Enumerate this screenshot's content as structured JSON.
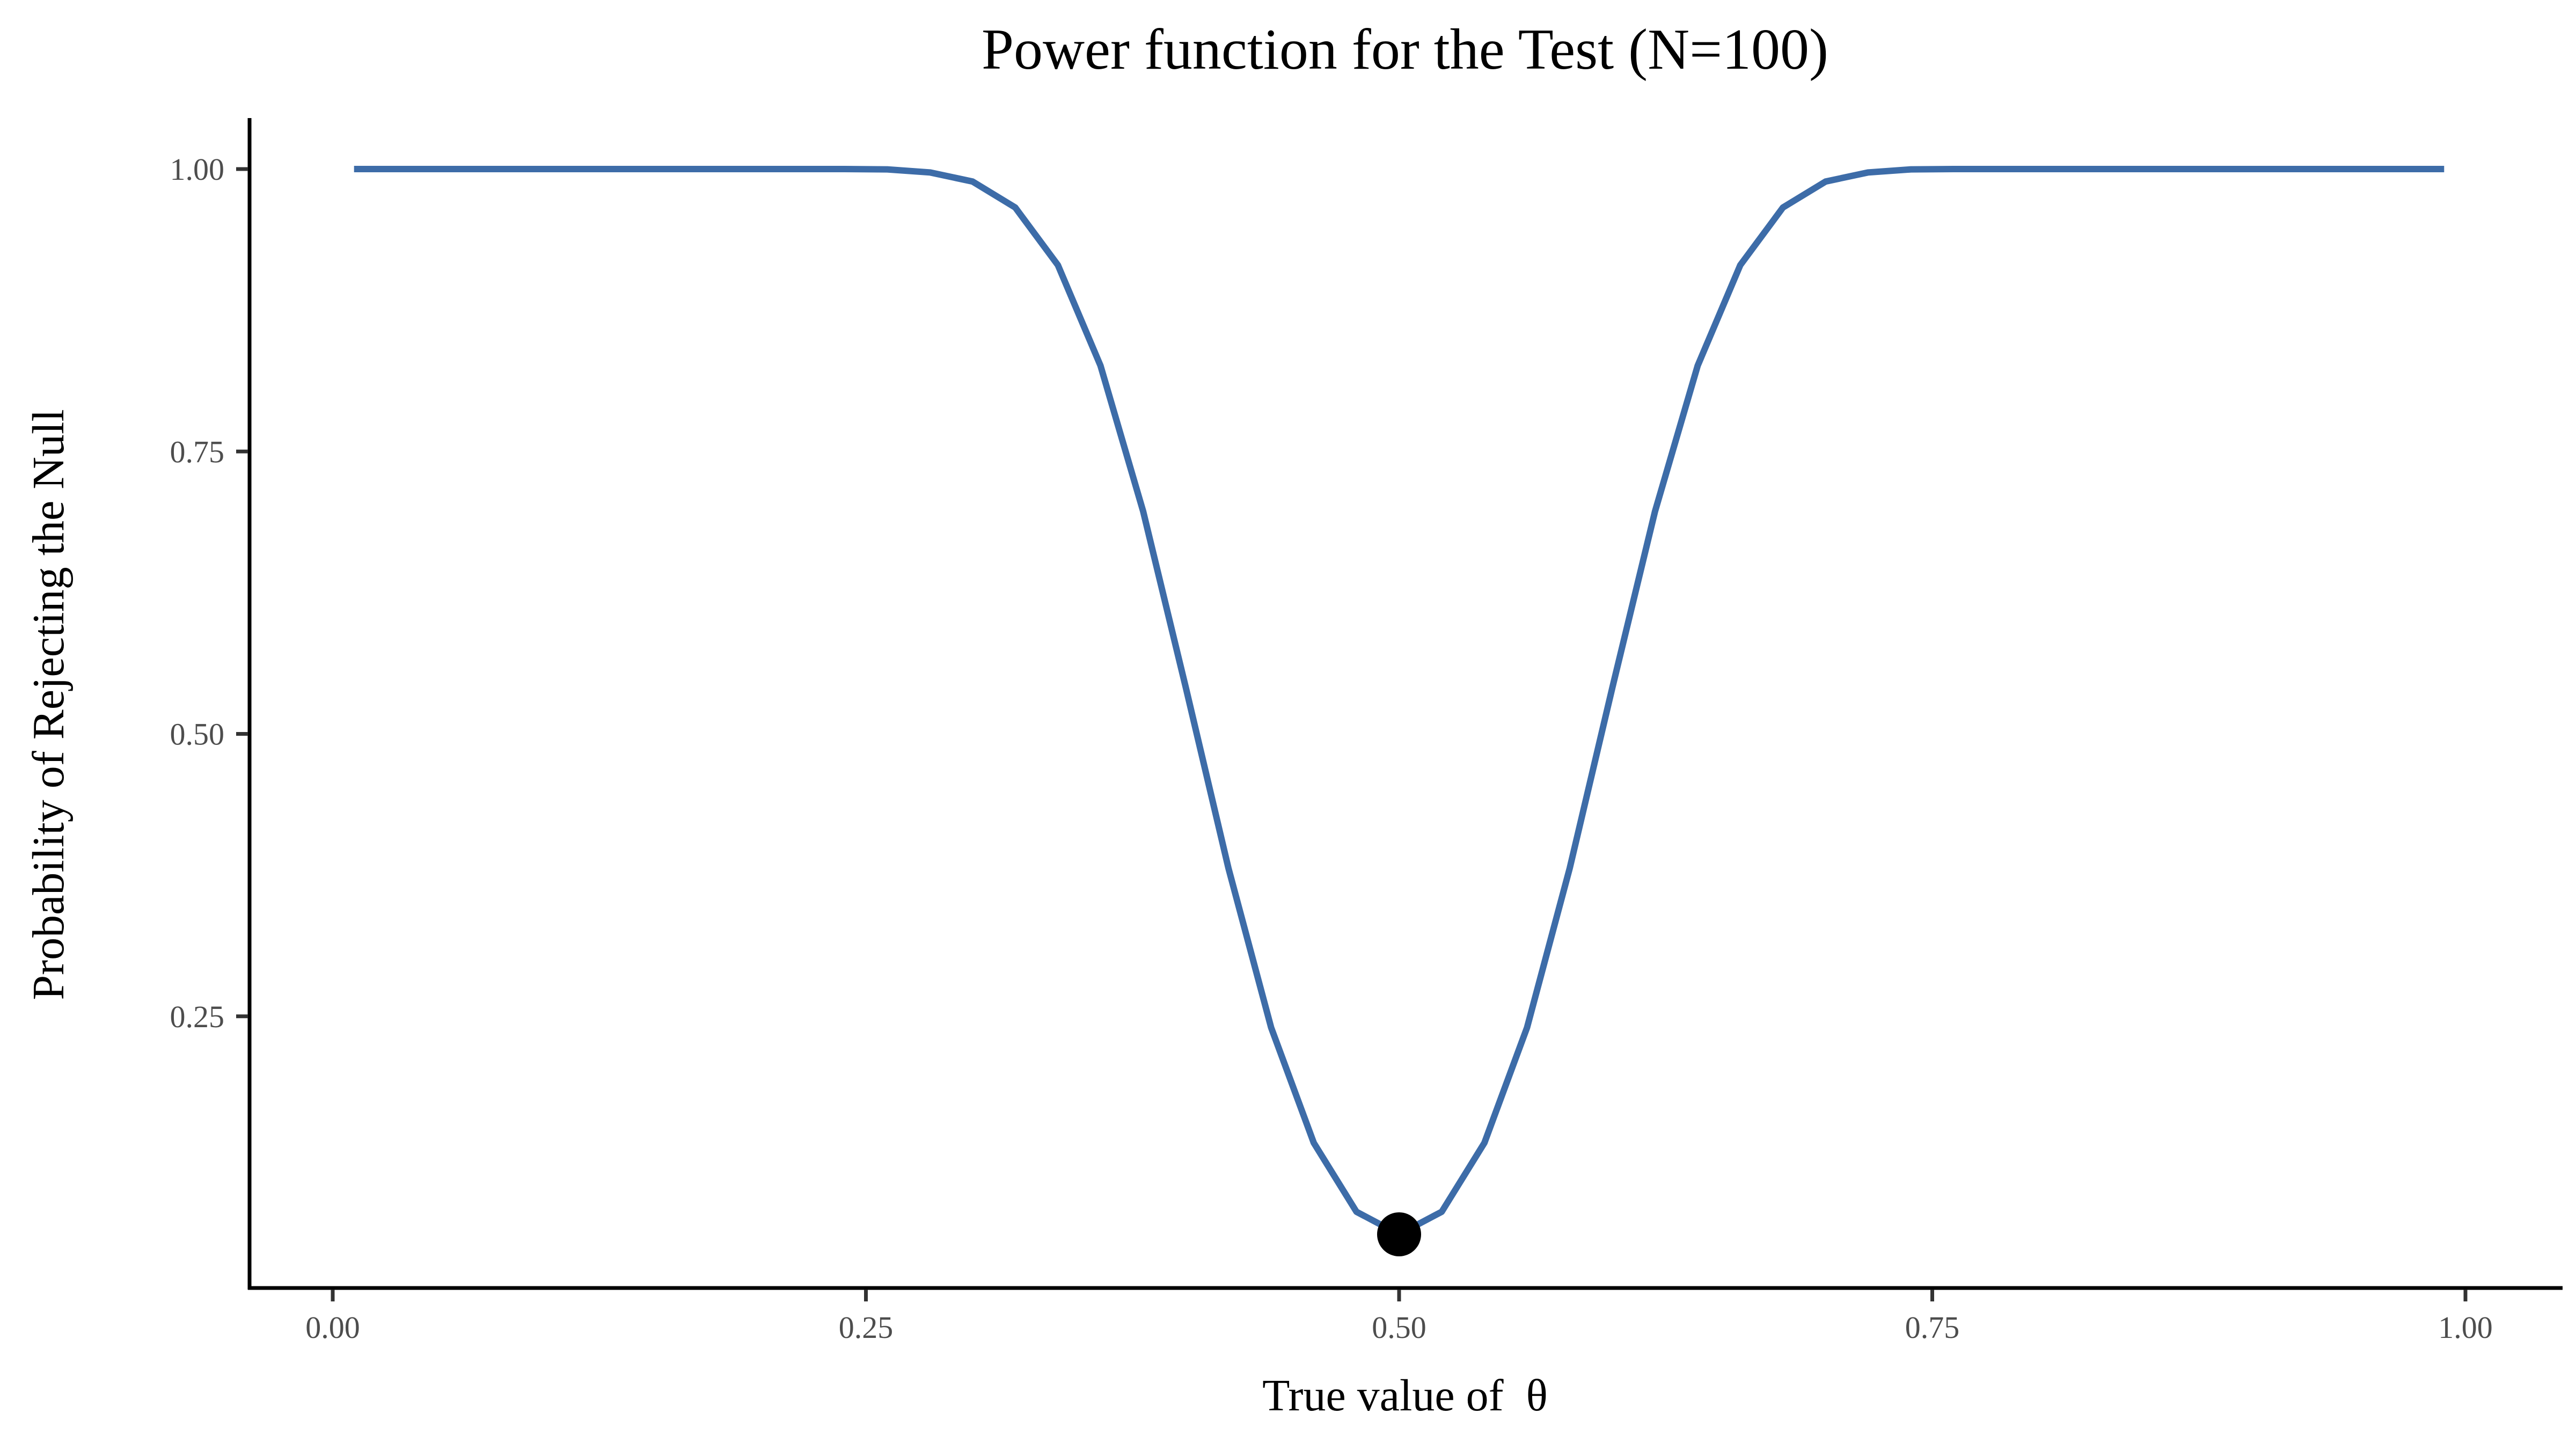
{
  "chart_data": {
    "type": "line",
    "title": "Power function for the Test (N=100)",
    "xlabel": "True value of  θ",
    "ylabel": "Probability of Rejecting the Null",
    "xlim": [
      0,
      1
    ],
    "ylim": [
      0.057,
      1.0
    ],
    "x_ticks": [
      0,
      0.25,
      0.5,
      0.75,
      1
    ],
    "x_tick_labels": [
      "0.00",
      "0.25",
      "0.50",
      "0.75",
      "1.00"
    ],
    "y_ticks": [
      0.25,
      0.5,
      0.75,
      1
    ],
    "y_tick_labels": [
      "0.25",
      "0.50",
      "0.75",
      "1.00"
    ],
    "grid": false,
    "line_color": "#3d6ca8",
    "series": [
      {
        "x": [
          0.01,
          0.05,
          0.1,
          0.15,
          0.2,
          0.24,
          0.26,
          0.28,
          0.3,
          0.32,
          0.34,
          0.36,
          0.38,
          0.4,
          0.42,
          0.44,
          0.46,
          0.48,
          0.5,
          0.52,
          0.54,
          0.56,
          0.58,
          0.6,
          0.62,
          0.64,
          0.66,
          0.68,
          0.7,
          0.72,
          0.74,
          0.76,
          0.8,
          0.85,
          0.9,
          0.95,
          0.99
        ],
        "y": [
          1,
          1,
          1,
          1,
          1,
          1,
          0.9997,
          0.997,
          0.989,
          0.966,
          0.915,
          0.826,
          0.697,
          0.541,
          0.381,
          0.24,
          0.138,
          0.077,
          0.057,
          0.077,
          0.138,
          0.24,
          0.381,
          0.541,
          0.697,
          0.826,
          0.915,
          0.966,
          0.989,
          0.997,
          0.9997,
          1,
          1,
          1,
          1,
          1,
          1
        ]
      }
    ],
    "highlight_point": {
      "x": 0.5,
      "y": 0.057,
      "color": "#000000"
    }
  }
}
